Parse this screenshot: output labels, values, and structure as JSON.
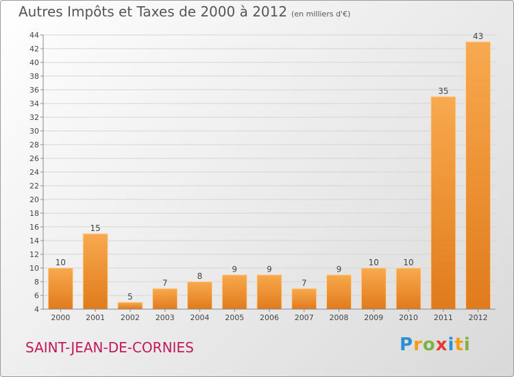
{
  "title": {
    "main": "Autres Impôts et Taxes de 2000 à 2012",
    "unit": "(en milliers d'€)"
  },
  "commune": "SAINT-JEAN-DE-CORNIES",
  "logo": {
    "letters": [
      "P",
      "r",
      "o",
      "x",
      "i",
      "t",
      "i"
    ],
    "colors": [
      "#2b8fd6",
      "#f39c12",
      "#7cb342",
      "#e53935",
      "#2b8fd6",
      "#f39c12",
      "#7cb342"
    ]
  },
  "colors": {
    "bar_light": "#f8a94e",
    "bar_dark": "#e07b1c",
    "text": "#555555",
    "commune": "#c2185b"
  },
  "chart_data": {
    "type": "bar",
    "title": "Autres Impôts et Taxes de 2000 à 2012",
    "categories": [
      "2000",
      "2001",
      "2002",
      "2003",
      "2004",
      "2005",
      "2006",
      "2007",
      "2008",
      "2009",
      "2010",
      "2011",
      "2012"
    ],
    "values": [
      10,
      15,
      5,
      7,
      8,
      9,
      9,
      7,
      9,
      10,
      10,
      35,
      43
    ],
    "data_labels": [
      "10",
      "15",
      "5",
      "7",
      "8",
      "9",
      "9",
      "7",
      "9",
      "10",
      "10",
      "35",
      "43"
    ],
    "ylim": [
      4,
      44
    ],
    "yticks": [
      "4",
      "6",
      "8",
      "10",
      "12",
      "14",
      "16",
      "18",
      "20",
      "22",
      "24",
      "26",
      "28",
      "30",
      "32",
      "34",
      "36",
      "38",
      "40",
      "42",
      "44"
    ],
    "grid": true,
    "legend": "none"
  }
}
